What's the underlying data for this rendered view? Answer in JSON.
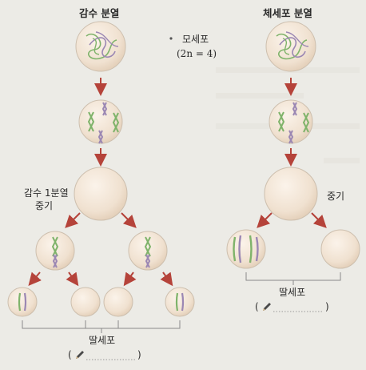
{
  "meiosis": {
    "title": "감수 분열",
    "stage_label_line1": "감수 1분열",
    "stage_label_line2": "중기",
    "daughter_label": "딸세포",
    "blank_open": "(",
    "blank_close": ")"
  },
  "mitosis": {
    "title": "체세포 분열",
    "stage_label": "중기",
    "daughter_label": "딸세포",
    "blank_open": "(",
    "blank_close": ")"
  },
  "legend": {
    "mother_label": "모세포",
    "ploidy": "(2n = 4)"
  },
  "colors": {
    "arrow": "#b5433a",
    "cell_fill": "#f2e6d8",
    "cell_edge": "#cdbfae",
    "chrom_green": "#7fb36a",
    "chrom_purple": "#9b87b3",
    "bracket": "#8a8a8a"
  },
  "icons": [
    "pencil-icon"
  ]
}
